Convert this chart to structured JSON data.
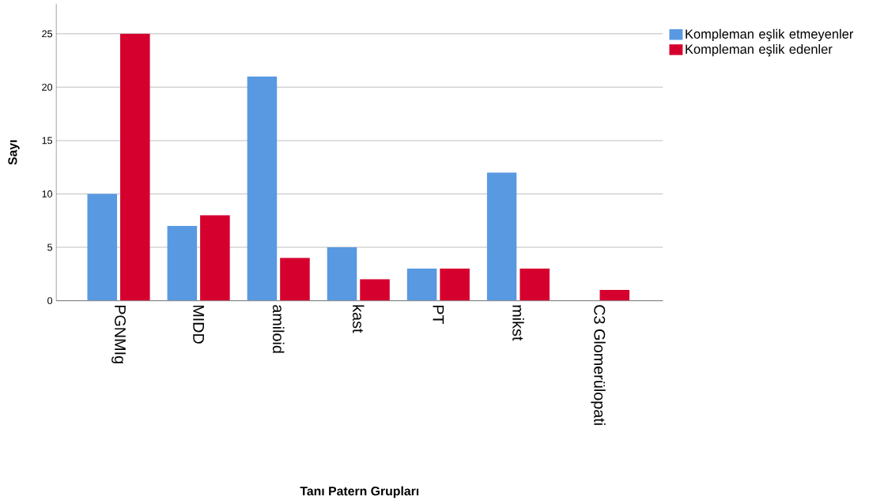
{
  "chart_data": {
    "type": "bar",
    "xlabel": "Tanı Patern Grupları",
    "ylabel": "Sayı",
    "categories": [
      "PGNMIg",
      "MIDD",
      "amiloid",
      "kast",
      "PT",
      "mikst",
      "C3 Glomerülopati"
    ],
    "series": [
      {
        "name": "Kompleman eşlik etmeyenler",
        "color": "#5899e2",
        "values": [
          10,
          7,
          21,
          5,
          3,
          12,
          null
        ]
      },
      {
        "name": "Kompleman eşlik edenler",
        "color": "#d6002f",
        "values": [
          25,
          8,
          4,
          2,
          3,
          3,
          1
        ]
      }
    ],
    "ylim": [
      0,
      27.8
    ],
    "yticks": [
      0,
      5,
      10,
      15,
      20,
      25
    ],
    "grid": "y",
    "legend": "right"
  }
}
